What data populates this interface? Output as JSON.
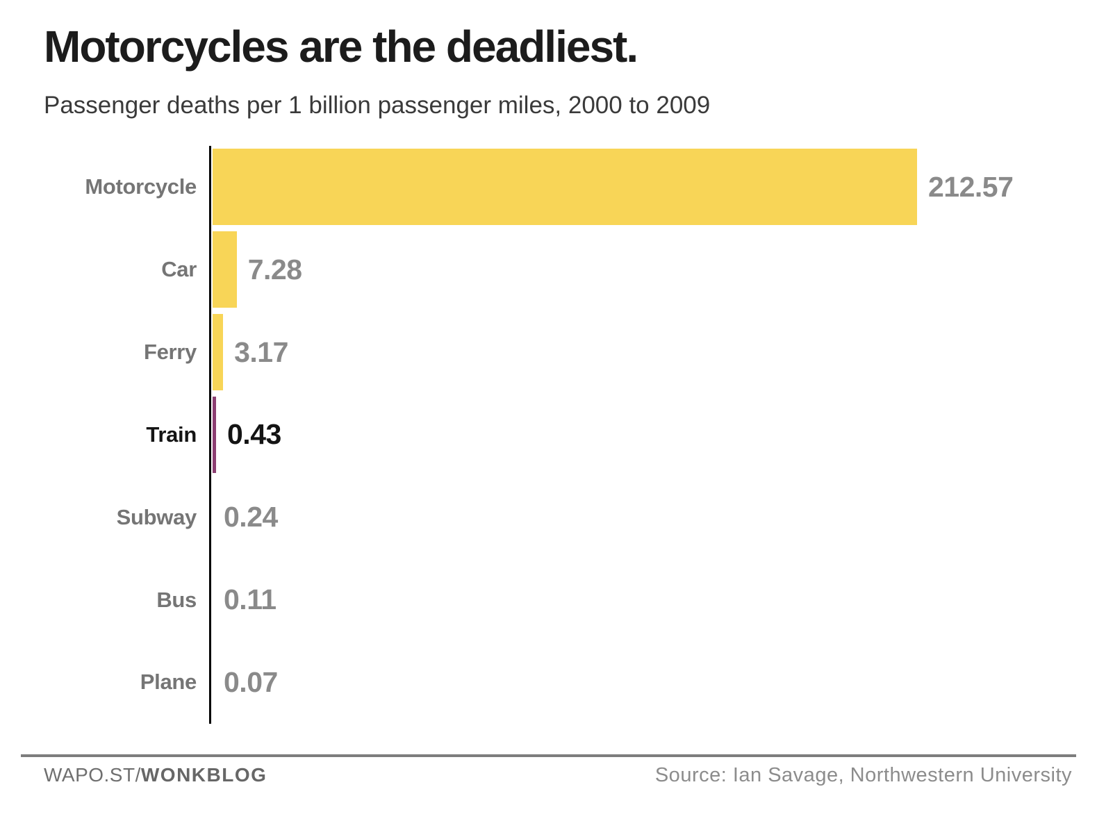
{
  "chart_data": {
    "type": "bar",
    "orientation": "horizontal",
    "title": "Motorcycles are the deadliest.",
    "subtitle": "Passenger deaths per 1 billion passenger miles, 2000 to 2009",
    "categories": [
      "Motorcycle",
      "Car",
      "Ferry",
      "Train",
      "Subway",
      "Bus",
      "Plane"
    ],
    "values": [
      212.57,
      7.28,
      3.17,
      0.43,
      0.24,
      0.11,
      0.07
    ],
    "value_labels": [
      "212.57",
      "7.28",
      "3.17",
      "0.43",
      "0.24",
      "0.11",
      "0.07"
    ],
    "highlighted_category": "Train",
    "xlim": [
      0,
      212.57
    ],
    "grid": "off",
    "legend": "none",
    "colors": {
      "bar": "#F8D557",
      "bar_highlight": "#8c3f72",
      "category_label": "#757575",
      "value_label": "#8a8a8a",
      "highlight_text": "#141414",
      "axis_line": "#000000",
      "title_text": "#1c1c1c"
    }
  },
  "footer": {
    "brand_prefix": "WAPO.ST/",
    "brand_bold": "WONKBLOG",
    "source": "Source: Ian Savage, Northwestern University"
  }
}
